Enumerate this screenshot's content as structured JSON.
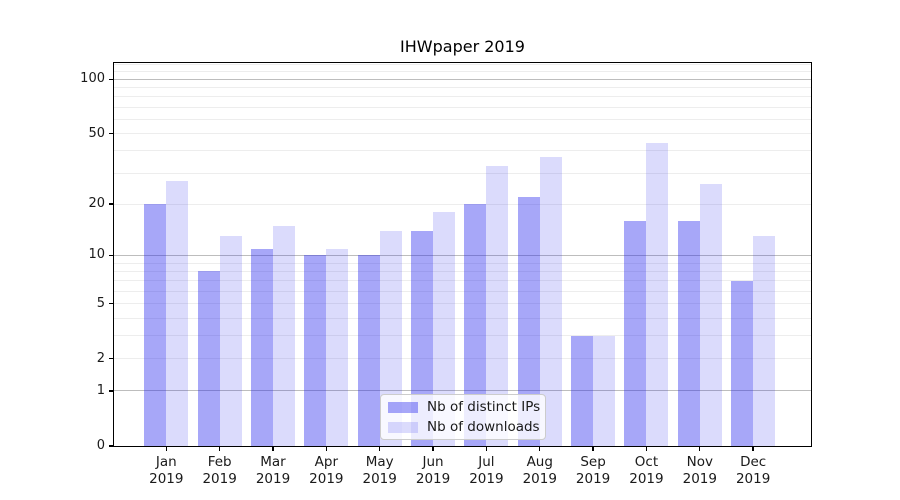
{
  "chart_data": {
    "type": "bar",
    "title": "IHWpaper 2019",
    "categories": [
      "Jan 2019",
      "Feb 2019",
      "Mar 2019",
      "Apr 2019",
      "May 2019",
      "Jun 2019",
      "Jul 2019",
      "Aug 2019",
      "Sep 2019",
      "Oct 2019",
      "Nov 2019",
      "Dec 2019"
    ],
    "series": [
      {
        "name": "Nb of distinct IPs",
        "values": [
          20,
          8,
          11,
          10,
          10,
          14,
          20,
          22,
          3,
          16,
          16,
          7
        ],
        "fill": "rgba(34,34,238,0.40)"
      },
      {
        "name": "Nb of downloads",
        "values": [
          27,
          13,
          15,
          11,
          14,
          18,
          33,
          37,
          3,
          44,
          26,
          13
        ],
        "fill": "rgba(34,34,238,0.165)"
      }
    ],
    "xlabel": "",
    "ylabel": "",
    "yscale": "log1p",
    "ylim": [
      0,
      123
    ],
    "yticks": [
      0,
      1,
      2,
      5,
      10,
      20,
      50,
      100
    ],
    "major_gridlines": [
      1,
      10,
      100
    ],
    "minor_gridlines": [
      2,
      3,
      4,
      5,
      6,
      7,
      8,
      9,
      20,
      30,
      40,
      50,
      60,
      70,
      80,
      90,
      110,
      120
    ],
    "grid": true,
    "legend_position": "lower center",
    "colors": {
      "series_dark": "rgba(34,34,238,0.40)",
      "series_light": "rgba(34,34,238,0.165)",
      "major_grid": "#bdbdbd",
      "minor_grid": "#ededed",
      "spine": "#000000",
      "text": "#1a1a1a"
    }
  }
}
